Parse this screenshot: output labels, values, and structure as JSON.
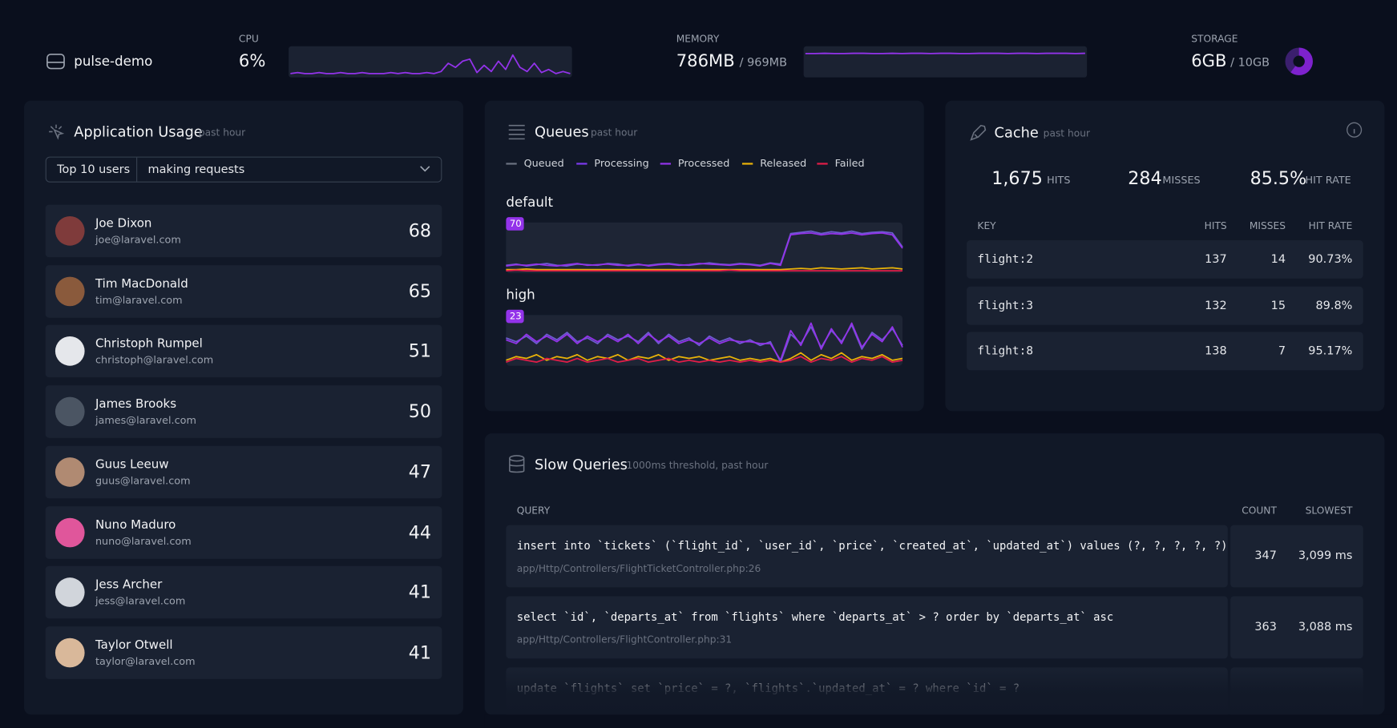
{
  "header": {
    "server": "pulse-demo",
    "cpu": {
      "label": "CPU",
      "value": "6%",
      "ylim": [
        0,
        25
      ],
      "series": [
        2,
        3,
        2,
        2,
        3,
        2,
        2,
        3,
        2,
        2,
        3,
        2,
        2,
        2,
        3,
        2,
        3,
        2,
        2,
        3,
        2,
        4,
        12,
        8,
        14,
        16,
        3,
        10,
        4,
        14,
        6,
        20,
        8,
        4,
        12,
        3,
        6,
        2,
        4,
        2
      ]
    },
    "memory": {
      "label": "MEMORY",
      "value": "786MB",
      "total": "/ 969MB",
      "ylim": [
        0,
        100
      ],
      "series": [
        80,
        80,
        81,
        80,
        80,
        81,
        81,
        80,
        80,
        81,
        80,
        81,
        81,
        80,
        81,
        81,
        80,
        80,
        81,
        81,
        81,
        80,
        81,
        81,
        80,
        81,
        81,
        81,
        80,
        81
      ]
    },
    "storage": {
      "label": "STORAGE",
      "value": "6GB",
      "total": "/ 10GB",
      "used": 6,
      "capacity": 10
    }
  },
  "usage": {
    "title": "Application Usage",
    "subtitle": "past hour",
    "select_label": "Top 10 users",
    "select_value": "making requests",
    "users": [
      {
        "name": "Joe Dixon",
        "email": "joe@laravel.com",
        "count": 68
      },
      {
        "name": "Tim MacDonald",
        "email": "tim@laravel.com",
        "count": 65
      },
      {
        "name": "Christoph Rumpel",
        "email": "christoph@laravel.com",
        "count": 51
      },
      {
        "name": "James Brooks",
        "email": "james@laravel.com",
        "count": 50
      },
      {
        "name": "Guus Leeuw",
        "email": "guus@laravel.com",
        "count": 47
      },
      {
        "name": "Nuno Maduro",
        "email": "nuno@laravel.com",
        "count": 44
      },
      {
        "name": "Jess Archer",
        "email": "jess@laravel.com",
        "count": 41
      },
      {
        "name": "Taylor Otwell",
        "email": "taylor@laravel.com",
        "count": 41
      }
    ]
  },
  "queues": {
    "title": "Queues",
    "subtitle": "past hour",
    "legend": [
      {
        "name": "Queued",
        "color": "#6b7280"
      },
      {
        "name": "Processing",
        "color": "#7c3aed"
      },
      {
        "name": "Processed",
        "color": "#9333ea"
      },
      {
        "name": "Released",
        "color": "#eab308"
      },
      {
        "name": "Failed",
        "color": "#e11d48"
      }
    ],
    "charts": [
      {
        "name": "default",
        "max": 70,
        "ylim": [
          0,
          70
        ],
        "series": [
          {
            "name": "Processing",
            "color": "#6d5bd0",
            "values": [
              10,
              12,
              9,
              11,
              13,
              10,
              9,
              12,
              11,
              10,
              13,
              12,
              9,
              11,
              10,
              12,
              13,
              11,
              10,
              12,
              14,
              12,
              11,
              13,
              12,
              10,
              14,
              12,
              62,
              64,
              66,
              62,
              65,
              63,
              66,
              62,
              64,
              65,
              63,
              40
            ]
          },
          {
            "name": "Processed",
            "color": "#9333ea",
            "values": [
              9,
              11,
              10,
              12,
              10,
              9,
              11,
              13,
              10,
              11,
              12,
              10,
              10,
              12,
              9,
              11,
              12,
              10,
              11,
              13,
              12,
              11,
              10,
              12,
              11,
              9,
              13,
              10,
              60,
              62,
              63,
              60,
              62,
              61,
              63,
              60,
              62,
              63,
              60,
              38
            ]
          },
          {
            "name": "Released",
            "color": "#eab308",
            "values": [
              3,
              3,
              4,
              3,
              3,
              3,
              3,
              3,
              3,
              3,
              3,
              3,
              3,
              3,
              3,
              3,
              3,
              3,
              3,
              3,
              3,
              3,
              3,
              3,
              3,
              3,
              3,
              3,
              4,
              5,
              4,
              6,
              5,
              4,
              5,
              6,
              4,
              5,
              6,
              4
            ]
          },
          {
            "name": "Failed",
            "color": "#e11d48",
            "values": [
              1,
              2,
              1,
              1,
              1,
              1,
              1,
              1,
              1,
              1,
              1,
              1,
              1,
              1,
              1,
              1,
              1,
              1,
              1,
              1,
              1,
              1,
              2,
              1,
              1,
              1,
              1,
              1,
              1,
              1,
              1,
              1,
              1,
              1,
              1,
              1,
              1,
              1,
              1,
              1
            ]
          }
        ]
      },
      {
        "name": "high",
        "max": 23,
        "ylim": [
          0,
          23
        ],
        "series": [
          {
            "name": "Processing",
            "color": "#6d5bd0",
            "values": [
              14,
              12,
              15,
              11,
              16,
              13,
              17,
              12,
              14,
              11,
              16,
              13,
              15,
              12,
              17,
              11,
              16,
              12,
              14,
              10,
              15,
              12,
              14,
              11,
              13,
              10,
              12,
              1,
              16,
              11,
              20,
              9,
              18,
              12,
              21,
              8,
              17,
              13,
              19,
              10
            ]
          },
          {
            "name": "Processed",
            "color": "#9333ea",
            "values": [
              13,
              11,
              16,
              12,
              15,
              12,
              16,
              11,
              15,
              12,
              15,
              12,
              16,
              11,
              16,
              12,
              15,
              11,
              13,
              11,
              14,
              11,
              13,
              12,
              12,
              11,
              11,
              2,
              18,
              10,
              22,
              8,
              19,
              11,
              22,
              9,
              16,
              12,
              20,
              9
            ]
          },
          {
            "name": "Released",
            "color": "#eab308",
            "values": [
              2,
              4,
              3,
              5,
              2,
              4,
              3,
              5,
              2,
              4,
              3,
              5,
              2,
              4,
              3,
              5,
              2,
              4,
              3,
              4,
              2,
              3,
              4,
              2,
              3,
              2,
              3,
              1,
              3,
              6,
              2,
              5,
              3,
              6,
              2,
              4,
              3,
              5,
              2,
              3
            ]
          },
          {
            "name": "Failed",
            "color": "#e11d48",
            "values": [
              1,
              3,
              2,
              1,
              3,
              2,
              1,
              3,
              1,
              2,
              3,
              1,
              2,
              3,
              1,
              2,
              3,
              1,
              2,
              1,
              2,
              1,
              2,
              1,
              2,
              1,
              2,
              1,
              2,
              4,
              1,
              3,
              2,
              4,
              1,
              3,
              2,
              4,
              1,
              2
            ]
          }
        ]
      }
    ]
  },
  "cache": {
    "title": "Cache",
    "subtitle": "past hour",
    "stats": [
      {
        "value": "1,675",
        "label": "HITS"
      },
      {
        "value": "284",
        "label": "MISSES"
      },
      {
        "value": "85.5%",
        "label": "HIT RATE"
      }
    ],
    "columns": [
      "KEY",
      "HITS",
      "MISSES",
      "HIT RATE"
    ],
    "rows": [
      [
        "flight:2",
        137,
        14,
        "90.73%"
      ],
      [
        "flight:3",
        132,
        15,
        "89.8%"
      ],
      [
        "flight:8",
        138,
        7,
        "95.17%"
      ]
    ]
  },
  "slow_queries": {
    "title": "Slow Queries",
    "subtitle": "1000ms threshold, past hour",
    "columns": [
      "QUERY",
      "COUNT",
      "SLOWEST"
    ],
    "rows": [
      {
        "query": "insert into `tickets` (`flight_id`, `user_id`, `price`, `created_at`, `updated_at`) values (?, ?, ?, ?, ?)",
        "location": "app/Http/Controllers/FlightTicketController.php:26",
        "count": 347,
        "slowest": "3,099 ms"
      },
      {
        "query": "select `id`, `departs_at` from `flights` where `departs_at` > ? order by `departs_at` asc",
        "location": "app/Http/Controllers/FlightController.php:31",
        "count": 363,
        "slowest": "3,088 ms"
      },
      {
        "query": "update `flights` set `price` = ?, `flights`.`updated_at` = ? where `id` = ?"
      }
    ]
  }
}
